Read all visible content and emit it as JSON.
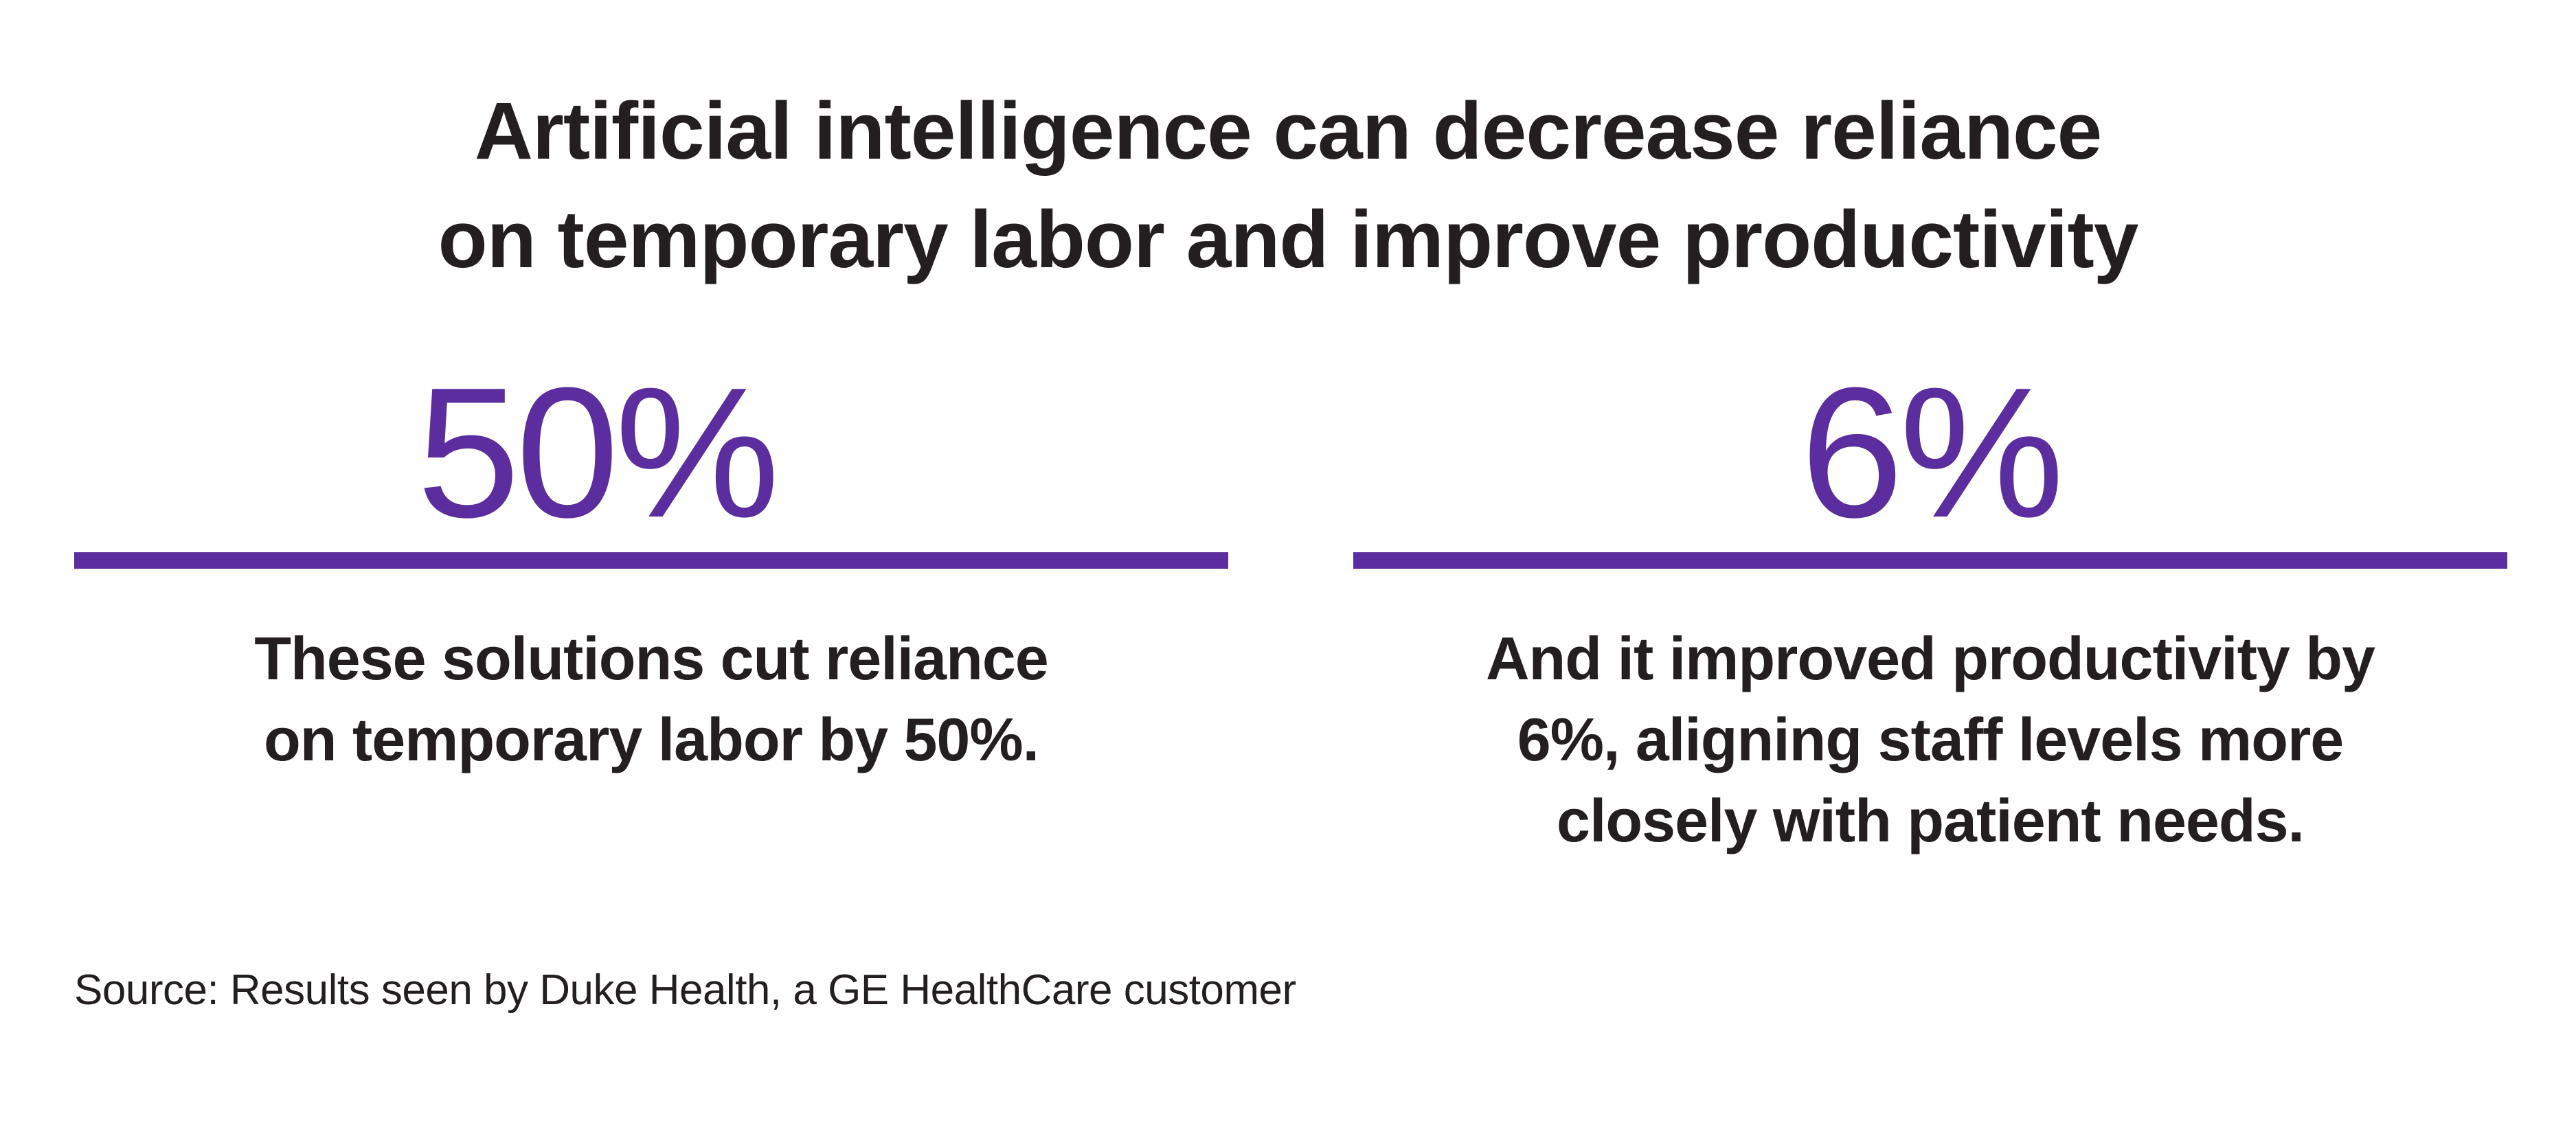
{
  "title": {
    "line1": "Artificial intelligence can decrease reliance",
    "line2": "on temporary labor and improve productivity"
  },
  "stats": [
    {
      "value": "50%",
      "description_lines": [
        "These solutions cut reliance",
        "on temporary labor by 50%."
      ]
    },
    {
      "value": "6%",
      "description_lines": [
        "And it improved productivity by",
        "6%, aligning staff levels more",
        "closely with patient needs."
      ]
    }
  ],
  "source": "Source: Results seen by Duke Health, a GE HealthCare customer",
  "colors": {
    "accent": "#5c2d9e",
    "text": "#231f20",
    "background": "#ffffff"
  }
}
